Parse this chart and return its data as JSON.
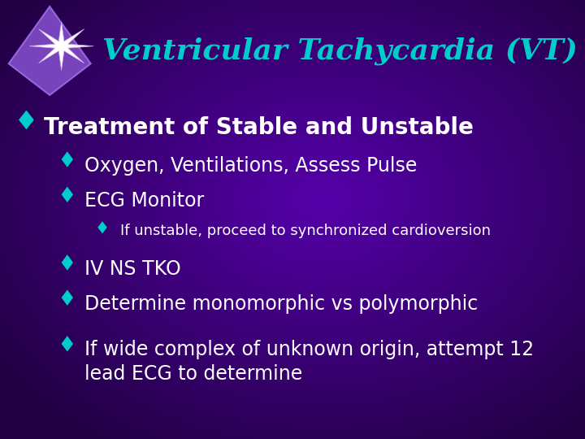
{
  "title": "Ventricular Tachycardia (VT)",
  "title_color": "#00CCCC",
  "bg_color_center": "#5500AA",
  "bg_color_edge": "#200040",
  "text_color_white": "#FFFFFF",
  "bullet_color": "#00CCCC",
  "bullet_color_main": "#00BBBB",
  "lines": [
    {
      "text": "Treatment of Stable and Unstable",
      "level": 0,
      "bold": true,
      "fs": 20
    },
    {
      "text": "Oxygen, Ventilations, Assess Pulse",
      "level": 1,
      "bold": false,
      "fs": 17
    },
    {
      "text": "ECG Monitor",
      "level": 1,
      "bold": false,
      "fs": 17
    },
    {
      "text": "If unstable, proceed to synchronized cardioversion",
      "level": 2,
      "bold": false,
      "fs": 13
    },
    {
      "text": "IV NS TKO",
      "level": 1,
      "bold": false,
      "fs": 17
    },
    {
      "text": "Determine monomorphic vs polymorphic",
      "level": 1,
      "bold": false,
      "fs": 17
    },
    {
      "text": "If wide complex of unknown origin, attempt 12\nlead ECG to determine",
      "level": 1,
      "bold": false,
      "fs": 17
    }
  ],
  "title_fontsize": 26,
  "logo_diamond_color": "#7744BB",
  "logo_diamond_edge": "#9966DD",
  "logo_star_color": "#FFFFFF",
  "logo_star_glow": "#CCAAEE"
}
